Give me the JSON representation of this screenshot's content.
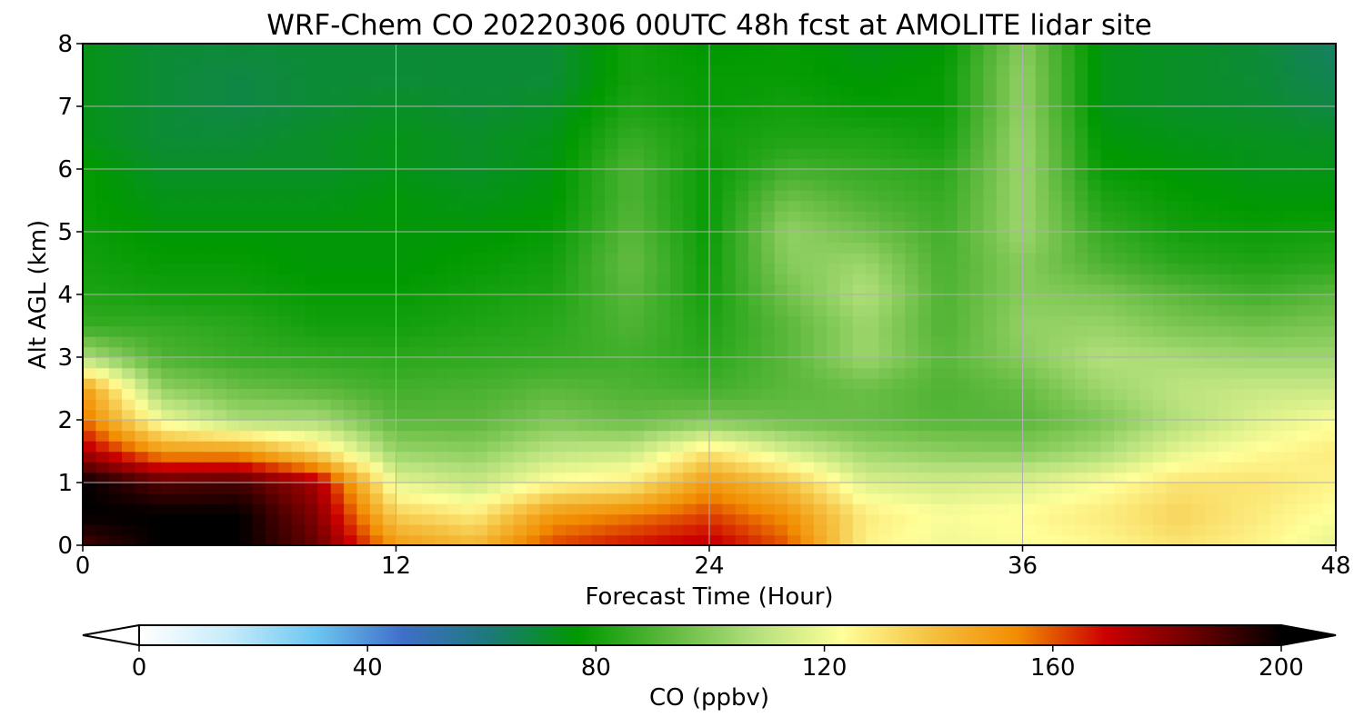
{
  "chart_data": {
    "type": "heatmap",
    "title": "WRF-Chem CO  20220306 00UTC 48h fcst at AMOLITE lidar site",
    "xlabel": "Forecast Time (Hour)",
    "ylabel": "Alt AGL (km)",
    "xlim": [
      0,
      48
    ],
    "ylim": [
      0,
      8
    ],
    "x_ticks": [
      0,
      12,
      24,
      36,
      48
    ],
    "y_ticks": [
      0,
      1,
      2,
      3,
      4,
      5,
      6,
      7,
      8
    ],
    "grid": true,
    "value_units": "ppbv",
    "x": [
      0,
      3,
      6,
      9,
      12,
      15,
      18,
      21,
      24,
      27,
      30,
      33,
      36,
      39,
      42,
      45,
      48
    ],
    "y": [
      0,
      0.5,
      1,
      1.5,
      2,
      2.5,
      3,
      3.5,
      4,
      4.5,
      5,
      5.5,
      6,
      6.5,
      7,
      7.5,
      8
    ],
    "z": [
      [
        190,
        200,
        200,
        185,
        150,
        142,
        162,
        168,
        172,
        160,
        126,
        120,
        122,
        125,
        130,
        126,
        118
      ],
      [
        200,
        200,
        200,
        180,
        135,
        128,
        150,
        155,
        162,
        152,
        128,
        122,
        124,
        128,
        134,
        128,
        122
      ],
      [
        200,
        188,
        190,
        175,
        118,
        112,
        124,
        128,
        150,
        138,
        116,
        114,
        116,
        122,
        130,
        130,
        126
      ],
      [
        175,
        150,
        150,
        132,
        103,
        101,
        110,
        112,
        130,
        115,
        104,
        101,
        100,
        106,
        118,
        124,
        128
      ],
      [
        158,
        120,
        106,
        106,
        92,
        92,
        98,
        94,
        98,
        95,
        94,
        91,
        92,
        98,
        108,
        116,
        122
      ],
      [
        150,
        102,
        95,
        92,
        88,
        89,
        92,
        90,
        88,
        92,
        95,
        90,
        94,
        104,
        110,
        112,
        112
      ],
      [
        108,
        90,
        86,
        85,
        84,
        85,
        86,
        88,
        84,
        92,
        104,
        92,
        100,
        108,
        106,
        104,
        104
      ],
      [
        86,
        86,
        84,
        80,
        80,
        82,
        84,
        90,
        82,
        92,
        104,
        90,
        102,
        103,
        98,
        96,
        98
      ],
      [
        82,
        80,
        80,
        78,
        78,
        80,
        82,
        92,
        80,
        96,
        108,
        90,
        100,
        98,
        92,
        88,
        92
      ],
      [
        80,
        78,
        78,
        76,
        76,
        78,
        80,
        94,
        79,
        100,
        104,
        89,
        100,
        90,
        84,
        82,
        84
      ],
      [
        79,
        76,
        76,
        76,
        76,
        76,
        78,
        92,
        78,
        102,
        96,
        88,
        104,
        86,
        80,
        79,
        80
      ],
      [
        78,
        74,
        74,
        74,
        76,
        74,
        76,
        90,
        78,
        96,
        90,
        86,
        104,
        82,
        78,
        76,
        76
      ],
      [
        78,
        72,
        72,
        72,
        74,
        72,
        75,
        90,
        78,
        88,
        86,
        84,
        104,
        78,
        76,
        74,
        74
      ],
      [
        74,
        70,
        70,
        72,
        74,
        72,
        74,
        86,
        80,
        82,
        82,
        80,
        104,
        76,
        74,
        73,
        72
      ],
      [
        74,
        70,
        68,
        70,
        72,
        70,
        72,
        82,
        78,
        80,
        78,
        78,
        102,
        74,
        72,
        71,
        68
      ],
      [
        74,
        70,
        68,
        70,
        70,
        70,
        70,
        80,
        78,
        78,
        76,
        78,
        102,
        74,
        72,
        70,
        66
      ],
      [
        74,
        70,
        70,
        70,
        70,
        70,
        70,
        80,
        76,
        78,
        74,
        76,
        100,
        74,
        72,
        70,
        64
      ]
    ],
    "colorbar": {
      "label": "CO  (ppbv)",
      "min": 0,
      "max": 200,
      "ticks": [
        0,
        40,
        80,
        120,
        160,
        200
      ],
      "extend": "both",
      "colors": [
        "#ffffff",
        "#c8ecfa",
        "#6dc7f2",
        "#3f6fc9",
        "#1b7a78",
        "#009900",
        "#5cb83c",
        "#b2df7b",
        "#ffff99",
        "#f5c242",
        "#f28c00",
        "#cc0000",
        "#6b0000",
        "#000000"
      ]
    }
  }
}
